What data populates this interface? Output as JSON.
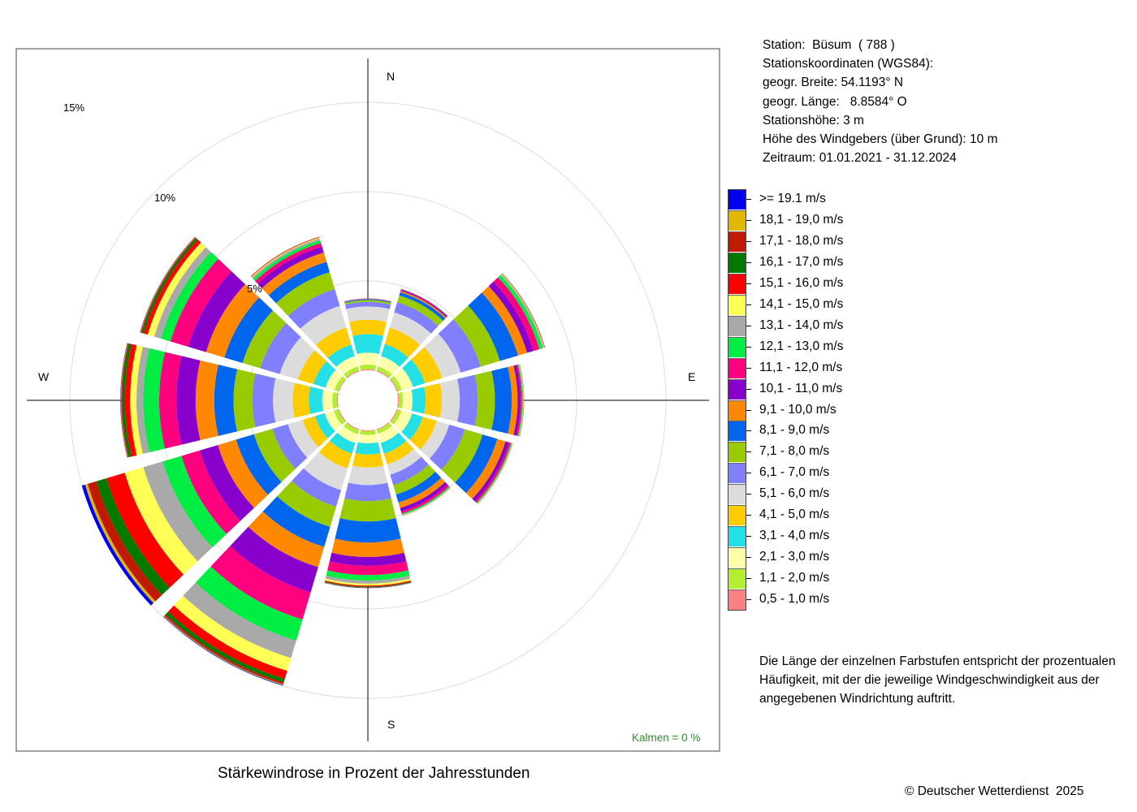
{
  "station_info": {
    "station": "Station:  Büsum  ( 788 )",
    "coords_heading": "Stationskoordinaten (WGS84):",
    "latitude": "geogr. Breite: 54.1193° N",
    "longitude": "geogr. Länge:   8.8584° O",
    "elevation": "Stationshöhe: 3 m",
    "anemometer_height": "Höhe des Windgebers (über Grund): 10 m",
    "period": "Zeitraum: 01.01.2021 - 31.12.2024"
  },
  "legend": {
    "items": [
      {
        "label": ">= 19.1 m/s",
        "color": "#0000ee"
      },
      {
        "label": "18,1 - 19,0 m/s",
        "color": "#e0b800"
      },
      {
        "label": "17,1 - 18,0 m/s",
        "color": "#c01a00"
      },
      {
        "label": "16,1 - 17,0 m/s",
        "color": "#007a00"
      },
      {
        "label": "15,1 - 16,0 m/s",
        "color": "#ff0000"
      },
      {
        "label": "14,1 - 15,0 m/s",
        "color": "#ffff55"
      },
      {
        "label": "13,1 - 14,0 m/s",
        "color": "#a9a9a9"
      },
      {
        "label": "12,1 - 13,0 m/s",
        "color": "#00ee44"
      },
      {
        "label": "11,1 - 12,0 m/s",
        "color": "#ff007f"
      },
      {
        "label": "10,1 - 11,0 m/s",
        "color": "#8800cc"
      },
      {
        "label": "9,1 - 10,0 m/s",
        "color": "#ff8800"
      },
      {
        "label": "8,1 - 9,0 m/s",
        "color": "#0066ee"
      },
      {
        "label": "7,1 - 8,0 m/s",
        "color": "#99cc00"
      },
      {
        "label": "6,1 - 7,0 m/s",
        "color": "#8080ff"
      },
      {
        "label": "5,1 - 6,0 m/s",
        "color": "#dcdcdc"
      },
      {
        "label": "4,1 - 5,0 m/s",
        "color": "#ffcc00"
      },
      {
        "label": "3,1 - 4,0 m/s",
        "color": "#22e0e6"
      },
      {
        "label": "2,1 - 3,0 m/s",
        "color": "#ffffaa"
      },
      {
        "label": "1,1 - 2,0 m/s",
        "color": "#b2ee33"
      },
      {
        "label": "0,5 - 1,0 m/s",
        "color": "#ff8080"
      }
    ]
  },
  "note": "Die Länge der einzelnen Farbstufen entspricht der prozentualen Häufigkeit, mit der die jeweilige Windgeschwindigkeit aus der angegebenen Windrichtung auftritt.",
  "chart_title": "Stärkewindrose in Prozent der Jahresstunden",
  "copyright": "© Deutscher Wetterdienst  2025",
  "calms_label": "Kalmen  =  0 %",
  "colors": {
    "calms": "#2e8b2e",
    "grid": "#dddddd",
    "axis": "#000000"
  },
  "chart_data": {
    "type": "wind-rose",
    "title": "Stärkewindrose in Prozent der Jahresstunden",
    "direction_labels": [
      "N",
      "E",
      "S",
      "W"
    ],
    "ring_labels": [
      "5%",
      "10%",
      "15%"
    ],
    "rings_percent": [
      5,
      10,
      15
    ],
    "calms_percent": 0,
    "sector_width_deg": 30,
    "speed_classes": [
      "0,5 - 1,0 m/s",
      "1,1 - 2,0 m/s",
      "2,1 - 3,0 m/s",
      "3,1 - 4,0 m/s",
      "4,1 - 5,0 m/s",
      "5,1 - 6,0 m/s",
      "6,1 - 7,0 m/s",
      "7,1 - 8,0 m/s",
      "8,1 - 9,0 m/s",
      "9,1 - 10,0 m/s",
      "10,1 - 11,0 m/s",
      "11,1 - 12,0 m/s",
      "12,1 - 13,0 m/s",
      "13,1 - 14,0 m/s",
      "14,1 - 15,0 m/s",
      "15,1 - 16,0 m/s",
      "16,1 - 17,0 m/s",
      "17,1 - 18,0 m/s",
      "18,1 - 19,0 m/s",
      ">= 19.1 m/s"
    ],
    "sectors": [
      {
        "direction_deg": 0,
        "values": [
          0.06,
          0.26,
          0.67,
          1.03,
          0.81,
          0.74,
          0.26,
          0.1,
          0.05,
          0.02,
          0.01,
          0.01,
          0,
          0,
          0,
          0,
          0,
          0,
          0,
          0
        ]
      },
      {
        "direction_deg": 30,
        "values": [
          0.06,
          0.24,
          0.6,
          0.71,
          0.96,
          0.89,
          0.59,
          0.4,
          0.18,
          0.08,
          0.06,
          0.04,
          0.02,
          0.01,
          0,
          0,
          0,
          0,
          0,
          0
        ]
      },
      {
        "direction_deg": 60,
        "values": [
          0.06,
          0.24,
          0.65,
          0.7,
          1.0,
          1.09,
          1.17,
          1.12,
          1.06,
          0.53,
          0.37,
          0.35,
          0.19,
          0.07,
          0.03,
          0.02,
          0.01,
          0.01,
          0,
          0
        ]
      },
      {
        "direction_deg": 90,
        "values": [
          0.06,
          0.22,
          0.54,
          0.73,
          0.91,
          1.0,
          1.01,
          0.96,
          0.94,
          0.33,
          0.15,
          0.09,
          0.05,
          0.03,
          0.02,
          0.01,
          0.01,
          0,
          0,
          0
        ]
      },
      {
        "direction_deg": 120,
        "values": [
          0.06,
          0.23,
          0.61,
          0.63,
          0.81,
          0.73,
          0.91,
          1.04,
          0.86,
          0.48,
          0.2,
          0.11,
          0.06,
          0.03,
          0.02,
          0.01,
          0,
          0,
          0,
          0
        ]
      },
      {
        "direction_deg": 150,
        "values": [
          0.05,
          0.22,
          0.54,
          0.63,
          0.62,
          0.61,
          0.6,
          0.55,
          0.47,
          0.32,
          0.21,
          0.12,
          0.07,
          0.03,
          0.02,
          0.01,
          0,
          0,
          0,
          0
        ]
      },
      {
        "direction_deg": 180,
        "values": [
          0.05,
          0.21,
          0.47,
          0.62,
          0.73,
          0.98,
          0.9,
          1.14,
          1.18,
          0.81,
          0.5,
          0.51,
          0.31,
          0.17,
          0.11,
          0.06,
          0.04,
          0.02,
          0.01,
          0.01
        ]
      },
      {
        "direction_deg": 210,
        "values": [
          0.06,
          0.24,
          0.51,
          0.62,
          0.87,
          1.26,
          0.97,
          1.18,
          1.17,
          1.18,
          1.48,
          1.58,
          1.24,
          1.01,
          0.75,
          0.47,
          0.21,
          0.11,
          0.04,
          0.03
        ]
      },
      {
        "direction_deg": 240,
        "values": [
          0.06,
          0.26,
          0.52,
          0.57,
          0.72,
          0.86,
          0.91,
          1.07,
          1.05,
          1.06,
          1.06,
          1.07,
          1.09,
          1.13,
          1.09,
          1.07,
          0.59,
          0.51,
          0.15,
          0.19
        ]
      },
      {
        "direction_deg": 270,
        "values": [
          0.06,
          0.25,
          0.57,
          0.75,
          0.9,
          1.1,
          1.16,
          1.05,
          1.08,
          1.04,
          1.08,
          0.96,
          0.89,
          0.38,
          0.35,
          0.29,
          0.15,
          0.06,
          0.03,
          0.02
        ]
      },
      {
        "direction_deg": 300,
        "values": [
          0.05,
          0.23,
          0.52,
          0.7,
          0.9,
          1.07,
          1.14,
          1.03,
          1.06,
          1.07,
          1.05,
          1.03,
          0.56,
          0.39,
          0.38,
          0.23,
          0.12,
          0.06,
          0.03,
          0.02
        ]
      },
      {
        "direction_deg": 330,
        "values": [
          0.06,
          0.24,
          0.6,
          0.68,
          0.99,
          1.26,
          0.99,
          0.98,
          0.61,
          0.54,
          0.35,
          0.21,
          0.16,
          0.1,
          0.05,
          0.03,
          0.01,
          0.01,
          0,
          0
        ]
      }
    ]
  }
}
